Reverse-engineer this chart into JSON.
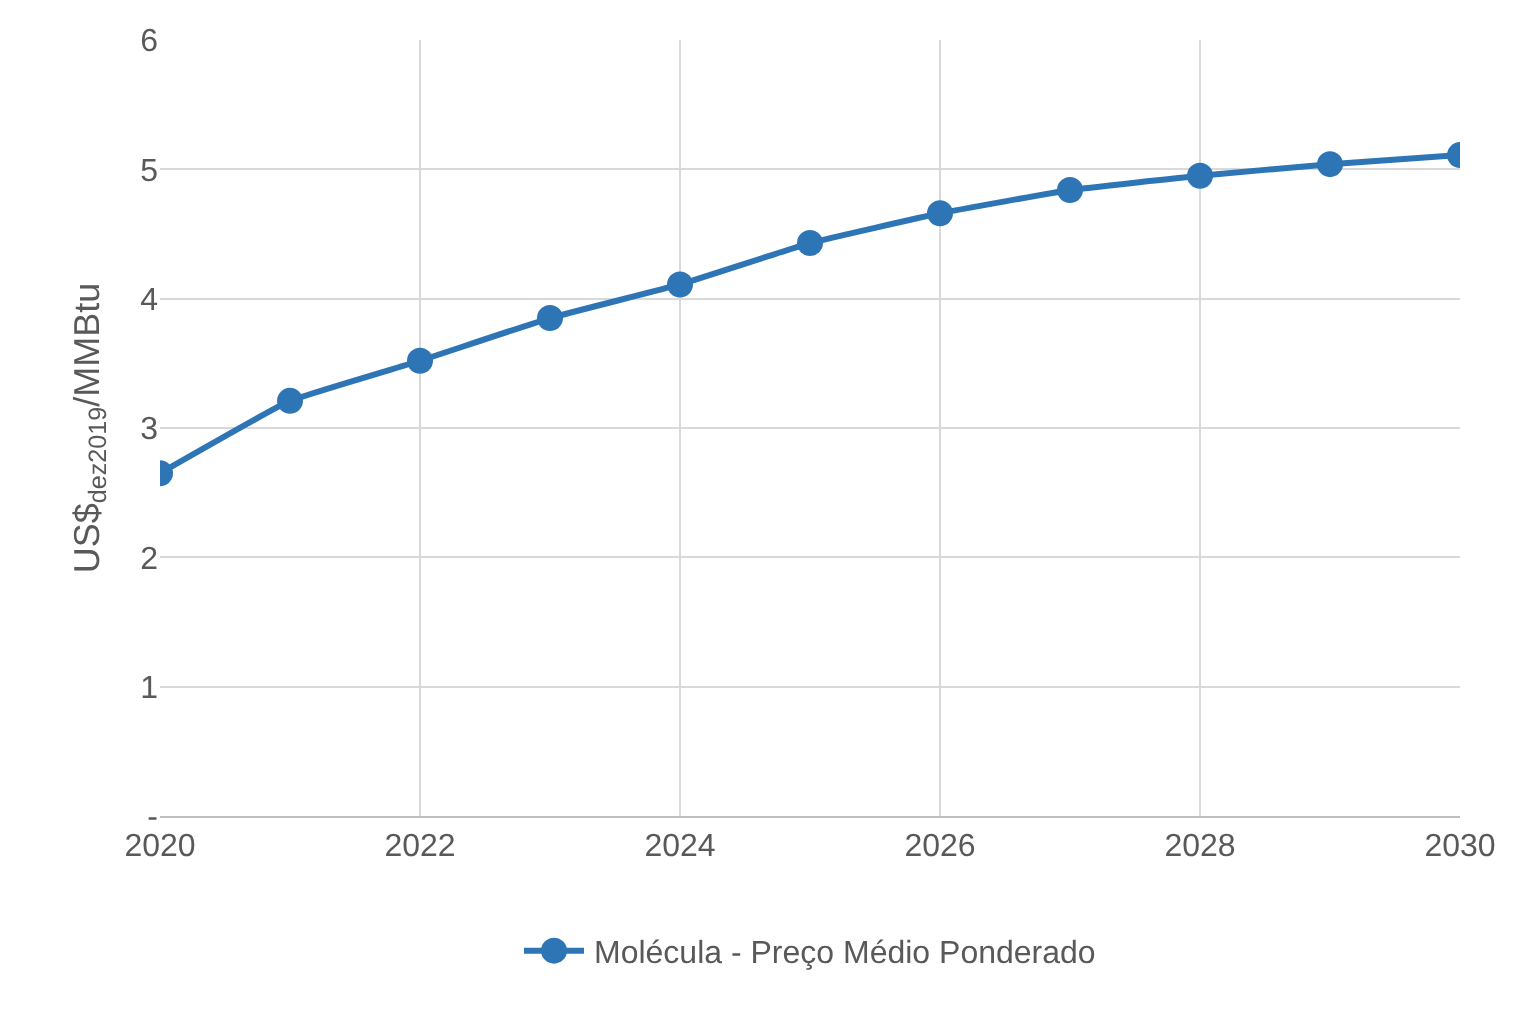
{
  "chart_data": {
    "type": "line",
    "ylabel": "US$$_{dez2019}$/MMBtu",
    "x": [
      2020,
      2021,
      2022,
      2023,
      2024,
      2025,
      2026,
      2027,
      2028,
      2029,
      2030
    ],
    "series": [
      {
        "name": "Molécula - Preço Médio Ponderado",
        "color": "#2e75b6",
        "values": [
          2.65,
          3.21,
          3.52,
          3.85,
          4.11,
          4.43,
          4.66,
          4.84,
          4.95,
          5.04,
          5.11
        ]
      }
    ],
    "xlim": [
      2020,
      2030
    ],
    "xticks": [
      2020,
      2022,
      2024,
      2026,
      2028,
      2030
    ],
    "ylim": [
      0,
      6
    ],
    "yticks": [
      {
        "value": 0,
        "label": "-"
      },
      1,
      2,
      3,
      4,
      5,
      6
    ],
    "grid": true,
    "legend": "bottom",
    "marker": "circle",
    "line_style": "solid"
  }
}
